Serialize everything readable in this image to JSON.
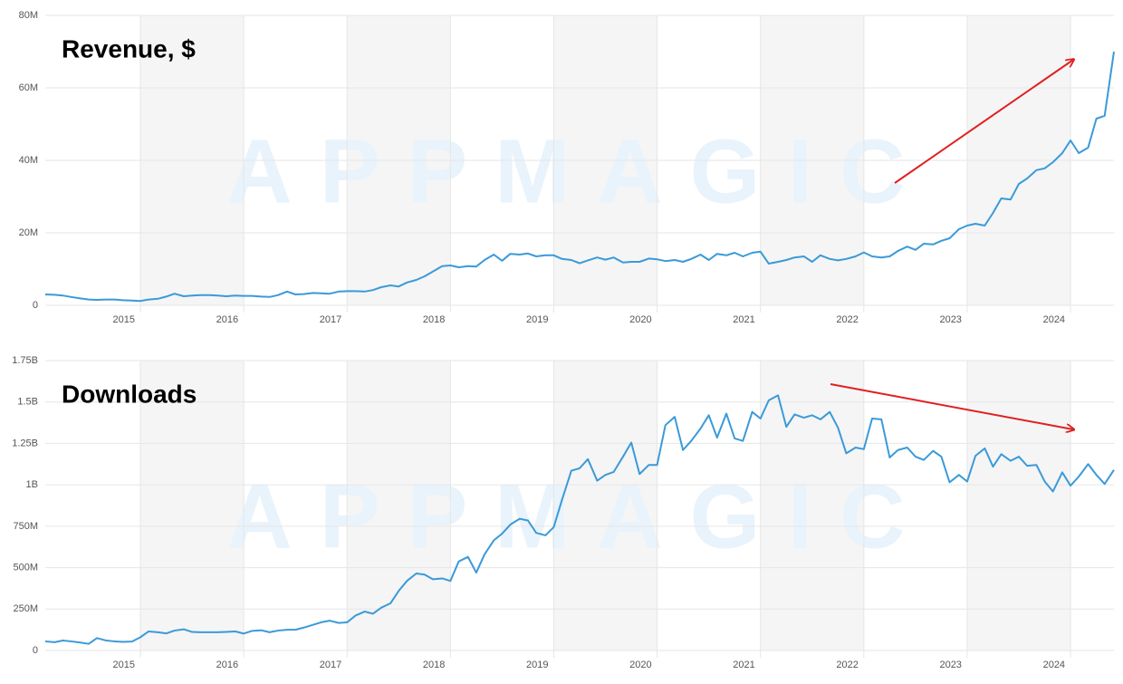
{
  "chart_data": [
    {
      "type": "line",
      "title": "Revenue, $",
      "watermark": "APPMAGIC",
      "x": [
        2014.08,
        2014.17,
        2014.25,
        2014.33,
        2014.42,
        2014.5,
        2014.58,
        2014.67,
        2014.75,
        2014.83,
        2014.92,
        2015,
        2015.08,
        2015.17,
        2015.25,
        2015.33,
        2015.42,
        2015.5,
        2015.58,
        2015.67,
        2015.75,
        2015.83,
        2015.92,
        2016,
        2016.08,
        2016.17,
        2016.25,
        2016.33,
        2016.42,
        2016.5,
        2016.58,
        2016.67,
        2016.75,
        2016.83,
        2016.92,
        2017,
        2017.08,
        2017.17,
        2017.25,
        2017.33,
        2017.42,
        2017.5,
        2017.58,
        2017.67,
        2017.75,
        2017.83,
        2017.92,
        2018,
        2018.08,
        2018.17,
        2018.25,
        2018.33,
        2018.42,
        2018.5,
        2018.58,
        2018.67,
        2018.75,
        2018.83,
        2018.92,
        2019,
        2019.08,
        2019.17,
        2019.25,
        2019.33,
        2019.42,
        2019.5,
        2019.58,
        2019.67,
        2019.75,
        2019.83,
        2019.92,
        2020,
        2020.08,
        2020.17,
        2020.25,
        2020.33,
        2020.42,
        2020.5,
        2020.58,
        2020.67,
        2020.75,
        2020.83,
        2020.92,
        2021,
        2021.08,
        2021.17,
        2021.25,
        2021.33,
        2021.42,
        2021.5,
        2021.58,
        2021.67,
        2021.75,
        2021.83,
        2021.92,
        2022,
        2022.08,
        2022.17,
        2022.25,
        2022.33,
        2022.42,
        2022.5,
        2022.58,
        2022.67,
        2022.75,
        2022.83,
        2022.92,
        2023,
        2023.08,
        2023.17,
        2023.25,
        2023.33,
        2023.42,
        2023.5,
        2023.58,
        2023.67,
        2023.75,
        2023.83,
        2023.92,
        2024,
        2024.08,
        2024.17,
        2024.25,
        2024.33,
        2024.42
      ],
      "series": [
        {
          "name": "Revenue",
          "color": "#3a9ad9",
          "values": [
            3000000.0,
            2900000.0,
            2700000.0,
            2300000.0,
            1900000.0,
            1600000.0,
            1500000.0,
            1600000.0,
            1600000.0,
            1400000.0,
            1300000.0,
            1200000.0,
            1600000.0,
            1800000.0,
            2400000.0,
            3200000.0,
            2500000.0,
            2700000.0,
            2800000.0,
            2800000.0,
            2700000.0,
            2500000.0,
            2700000.0,
            2600000.0,
            2600000.0,
            2400000.0,
            2300000.0,
            2800000.0,
            3800000.0,
            3000000.0,
            3100000.0,
            3400000.0,
            3300000.0,
            3200000.0,
            3800000.0,
            3900000.0,
            3900000.0,
            3800000.0,
            4200000.0,
            5000000.0,
            5500000.0,
            5200000.0,
            6300000.0,
            7000000.0,
            8000000.0,
            9300000.0,
            10800000.0,
            11000000.0,
            10500000.0,
            10800000.0,
            10700000.0,
            12500000.0,
            14000000.0,
            12300000.0,
            14200000.0,
            14000000.0,
            14300000.0,
            13500000.0,
            13800000.0,
            13800000.0,
            12800000.0,
            12500000.0,
            11600000.0,
            12400000.0,
            13200000.0,
            12600000.0,
            13200000.0,
            11800000.0,
            12000000.0,
            12000000.0,
            12900000.0,
            12700000.0,
            12200000.0,
            12500000.0,
            12000000.0,
            12800000.0,
            14000000.0,
            12500000.0,
            14200000.0,
            13800000.0,
            14500000.0,
            13500000.0,
            14500000.0,
            14800000.0,
            11500000.0,
            12000000.0,
            12500000.0,
            13200000.0,
            13500000.0,
            12000000.0,
            13800000.0,
            12800000.0,
            12400000.0,
            12800000.0,
            13500000.0,
            14600000.0,
            13500000.0,
            13200000.0,
            13500000.0,
            15000000.0,
            16200000.0,
            15300000.0,
            17000000.0,
            16800000.0,
            17800000.0,
            18500000.0,
            21000000.0,
            22000000.0,
            22500000.0,
            22000000.0,
            25500000.0,
            29500000.0,
            29200000.0,
            33500000.0,
            35000000.0,
            37300000.0,
            37800000.0,
            39500000.0,
            42000000.0,
            45500000.0,
            42000000.0,
            43500000.0,
            51500000.0,
            52300000.0,
            70000000.0
          ]
        }
      ],
      "xlim": [
        2014.08,
        2024.42
      ],
      "xticks": [
        2015,
        2016,
        2017,
        2018,
        2019,
        2020,
        2021,
        2022,
        2023,
        2024
      ],
      "ylim": [
        0,
        80000000
      ],
      "yticks": [
        0,
        {
          "value": 20000000,
          "label": "20M"
        },
        {
          "value": 40000000,
          "label": "40M"
        },
        {
          "value": 60000000,
          "label": "60M"
        },
        {
          "value": 80000000,
          "label": "80M"
        }
      ],
      "grid": true
    },
    {
      "type": "line",
      "title": "Downloads",
      "watermark": "APPMAGIC",
      "x": [
        2014.08,
        2014.17,
        2014.25,
        2014.33,
        2014.42,
        2014.5,
        2014.58,
        2014.67,
        2014.75,
        2014.83,
        2014.92,
        2015,
        2015.08,
        2015.17,
        2015.25,
        2015.33,
        2015.42,
        2015.5,
        2015.58,
        2015.67,
        2015.75,
        2015.83,
        2015.92,
        2016,
        2016.08,
        2016.17,
        2016.25,
        2016.33,
        2016.42,
        2016.5,
        2016.58,
        2016.67,
        2016.75,
        2016.83,
        2016.92,
        2017,
        2017.08,
        2017.17,
        2017.25,
        2017.33,
        2017.42,
        2017.5,
        2017.58,
        2017.67,
        2017.75,
        2017.83,
        2017.92,
        2018,
        2018.08,
        2018.17,
        2018.25,
        2018.33,
        2018.42,
        2018.5,
        2018.58,
        2018.67,
        2018.75,
        2018.83,
        2018.92,
        2019,
        2019.08,
        2019.17,
        2019.25,
        2019.33,
        2019.42,
        2019.5,
        2019.58,
        2019.67,
        2019.75,
        2019.83,
        2019.92,
        2020,
        2020.08,
        2020.17,
        2020.25,
        2020.33,
        2020.42,
        2020.5,
        2020.58,
        2020.67,
        2020.75,
        2020.83,
        2020.92,
        2021,
        2021.08,
        2021.17,
        2021.25,
        2021.33,
        2021.42,
        2021.5,
        2021.58,
        2021.67,
        2021.75,
        2021.83,
        2021.92,
        2022,
        2022.08,
        2022.17,
        2022.25,
        2022.33,
        2022.42,
        2022.5,
        2022.58,
        2022.67,
        2022.75,
        2022.83,
        2022.92,
        2023,
        2023.08,
        2023.17,
        2023.25,
        2023.33,
        2023.42,
        2023.5,
        2023.58,
        2023.67,
        2023.75,
        2023.83,
        2023.92,
        2024,
        2024.08,
        2024.17,
        2024.25,
        2024.33,
        2024.42
      ],
      "series": [
        {
          "name": "Downloads",
          "color": "#3a9ad9",
          "values": [
            55000000.0,
            50000000.0,
            60000000.0,
            55000000.0,
            48000000.0,
            40000000.0,
            75000000.0,
            60000000.0,
            55000000.0,
            52000000.0,
            54000000.0,
            80000000.0,
            115000000.0,
            110000000.0,
            103000000.0,
            120000000.0,
            128000000.0,
            112000000.0,
            110000000.0,
            110000000.0,
            110000000.0,
            112000000.0,
            115000000.0,
            102000000.0,
            118000000.0,
            122000000.0,
            110000000.0,
            120000000.0,
            125000000.0,
            125000000.0,
            138000000.0,
            155000000.0,
            170000000.0,
            180000000.0,
            166000000.0,
            170000000.0,
            210000000.0,
            235000000.0,
            222000000.0,
            258000000.0,
            285000000.0,
            360000000.0,
            420000000.0,
            465000000.0,
            458000000.0,
            430000000.0,
            435000000.0,
            420000000.0,
            537000000.0,
            565000000.0,
            470000000.0,
            580000000.0,
            665000000.0,
            705000000.0,
            760000000.0,
            795000000.0,
            785000000.0,
            710000000.0,
            695000000.0,
            745000000.0,
            910000000.0,
            1085000000.0,
            1100000000.0,
            1155000000.0,
            1025000000.0,
            1060000000.0,
            1078000000.0,
            1170000000.0,
            1255000000.0,
            1065000000.0,
            1120000000.0,
            1120000000.0,
            1360000000.0,
            1410000000.0,
            1210000000.0,
            1265000000.0,
            1340000000.0,
            1420000000.0,
            1285000000.0,
            1430000000.0,
            1280000000.0,
            1265000000.0,
            1440000000.0,
            1400000000.0,
            1510000000.0,
            1540000000.0,
            1350000000.0,
            1425000000.0,
            1405000000.0,
            1420000000.0,
            1395000000.0,
            1440000000.0,
            1345000000.0,
            1190000000.0,
            1225000000.0,
            1215000000.0,
            1400000000.0,
            1395000000.0,
            1165000000.0,
            1210000000.0,
            1225000000.0,
            1170000000.0,
            1150000000.0,
            1205000000.0,
            1170000000.0,
            1015000000.0,
            1060000000.0,
            1020000000.0,
            1175000000.0,
            1220000000.0,
            1110000000.0,
            1185000000.0,
            1145000000.0,
            1170000000.0,
            1115000000.0,
            1120000000.0,
            1020000000.0,
            960000000.0,
            1075000000.0,
            995000000.0,
            1050000000.0,
            1125000000.0,
            1060000000.0,
            1005000000.0,
            1090000000.0
          ]
        }
      ],
      "xlim": [
        2014.08,
        2024.42
      ],
      "xticks": [
        2015,
        2016,
        2017,
        2018,
        2019,
        2020,
        2021,
        2022,
        2023,
        2024
      ],
      "ylim": [
        0,
        1750000000
      ],
      "yticks": [
        0,
        {
          "value": 250000000,
          "label": "250M"
        },
        {
          "value": 500000000,
          "label": "500M"
        },
        {
          "value": 750000000,
          "label": "750M"
        },
        {
          "value": 1000000000,
          "label": "1B"
        },
        {
          "value": 1250000000,
          "label": "1.25B"
        },
        {
          "value": 1500000000,
          "label": "1.5B"
        },
        {
          "value": 1750000000,
          "label": "1.75B"
        }
      ],
      "grid": true
    }
  ]
}
